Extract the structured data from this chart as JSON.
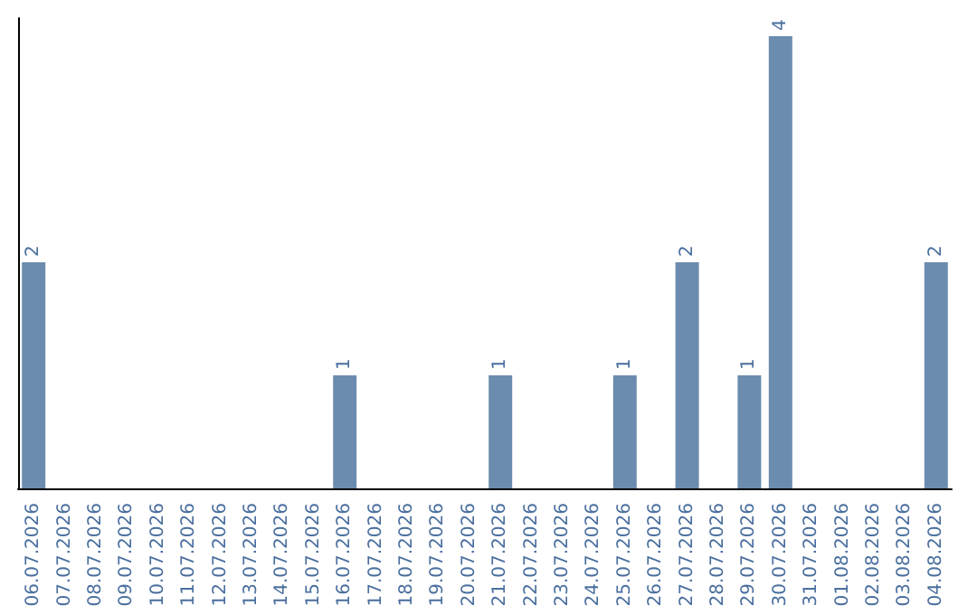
{
  "chart_data": {
    "type": "bar",
    "categories": [
      "06.07.2026",
      "07.07.2026",
      "08.07.2026",
      "09.07.2026",
      "10.07.2026",
      "11.07.2026",
      "12.07.2026",
      "13.07.2026",
      "14.07.2026",
      "15.07.2026",
      "16.07.2026",
      "17.07.2026",
      "18.07.2026",
      "19.07.2026",
      "20.07.2026",
      "21.07.2026",
      "22.07.2026",
      "23.07.2026",
      "24.07.2026",
      "25.07.2026",
      "26.07.2026",
      "27.07.2026",
      "28.07.2026",
      "29.07.2026",
      "30.07.2026",
      "31.07.2026",
      "01.08.2026",
      "02.08.2026",
      "03.08.2026",
      "04.08.2026"
    ],
    "values": [
      2,
      0,
      0,
      0,
      0,
      0,
      0,
      0,
      0,
      0,
      1,
      0,
      0,
      0,
      0,
      1,
      0,
      0,
      0,
      1,
      0,
      2,
      0,
      1,
      4,
      0,
      0,
      0,
      0,
      2
    ],
    "value_labels": [
      "2",
      null,
      null,
      null,
      null,
      null,
      null,
      null,
      null,
      null,
      "1",
      null,
      null,
      null,
      null,
      "1",
      null,
      null,
      null,
      "1",
      null,
      "2",
      null,
      "1",
      "4",
      null,
      null,
      null,
      null,
      "2"
    ],
    "color": "#6b8cae",
    "grid": false,
    "tick_labels": "x"
  }
}
